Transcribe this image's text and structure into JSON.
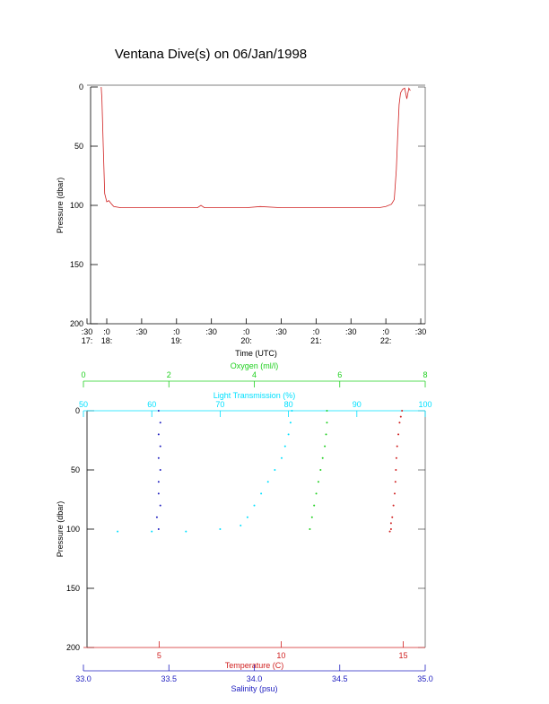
{
  "title": "Ventana Dive(s) on 06/Jan/1998",
  "chart_data": [
    {
      "type": "line",
      "xlabel": "Time (UTC)",
      "ylabel": "Pressure (dbar)",
      "color": "#d02020",
      "xlim": [
        17.717,
        22.564
      ],
      "ylim": [
        0,
        200
      ],
      "y_inverted": true,
      "yticks": [
        0,
        50,
        100,
        150,
        200
      ],
      "xticks": [
        {
          "value": 17.717,
          "label": [
            ":30",
            "17:"
          ]
        },
        {
          "value": 18,
          "label": [
            ":0",
            "18:"
          ]
        },
        {
          "value": 18.5,
          "label": [
            ":30"
          ]
        },
        {
          "value": 19,
          "label": [
            ":0",
            "19:"
          ]
        },
        {
          "value": 19.5,
          "label": [
            ":30"
          ]
        },
        {
          "value": 20,
          "label": [
            ":0",
            "20:"
          ]
        },
        {
          "value": 20.5,
          "label": [
            ":30"
          ]
        },
        {
          "value": 21,
          "label": [
            ":0",
            "21:"
          ]
        },
        {
          "value": 21.5,
          "label": [
            ":30"
          ]
        },
        {
          "value": 22,
          "label": [
            ":0",
            "22:"
          ]
        },
        {
          "value": 22.5,
          "label": [
            ":30"
          ]
        }
      ],
      "x": [
        17.92,
        17.93,
        17.95,
        17.97,
        18.0,
        18.03,
        18.07,
        18.1,
        18.2,
        18.5,
        19.0,
        19.3,
        19.35,
        19.4,
        20.0,
        20.2,
        20.5,
        21.0,
        21.5,
        21.9,
        22.0,
        22.08,
        22.12,
        22.15,
        22.17,
        22.19,
        22.21,
        22.24,
        22.27,
        22.3,
        22.33,
        22.35
      ],
      "values": [
        0,
        10,
        50,
        90,
        97,
        96,
        99,
        101,
        102,
        102,
        102,
        102,
        100,
        102,
        102,
        101,
        102,
        102,
        102,
        102,
        101,
        99,
        95,
        70,
        40,
        15,
        5,
        2,
        1,
        10,
        1,
        3
      ]
    },
    {
      "type": "scatter",
      "ylabel": "Pressure (dbar)",
      "ylim": [
        0,
        200
      ],
      "y_inverted": true,
      "yticks": [
        0,
        50,
        100,
        150,
        200
      ],
      "axes": [
        {
          "label": "Temperature (C)",
          "color": "#d02020",
          "position": "bottom",
          "xlim": [
            1.9,
            15.9
          ],
          "xticks": [
            5,
            10,
            15
          ]
        },
        {
          "label": "Salinity (psu)",
          "color": "#2020c0",
          "position": "bottom",
          "xlim": [
            33.0,
            35.0
          ],
          "xticks": [
            {
              "value": 33.0,
              "label": "33.0"
            },
            {
              "value": 33.5,
              "label": "33.5"
            },
            {
              "value": 34.0,
              "label": "34.0"
            },
            {
              "value": 34.5,
              "label": "34.5"
            },
            {
              "value": 35.0,
              "label": "35.0"
            }
          ]
        },
        {
          "label": "Light Transmission (%)",
          "color": "#00e0ff",
          "position": "top",
          "xlim": [
            50,
            100
          ],
          "xticks": [
            50,
            60,
            70,
            80,
            90,
            100
          ]
        },
        {
          "label": "Oxygen (ml/l)",
          "color": "#20d020",
          "position": "top",
          "xlim": [
            0,
            8
          ],
          "xticks": [
            0,
            2,
            4,
            6,
            8
          ]
        }
      ],
      "series": [
        {
          "axis": 0,
          "color": "#d02020",
          "x": [
            14.95,
            14.9,
            14.85,
            14.8,
            14.75,
            14.72,
            14.7,
            14.68,
            14.65,
            14.6,
            14.55,
            14.5,
            14.5,
            14.45
          ],
          "values": [
            0,
            5,
            10,
            20,
            30,
            40,
            50,
            60,
            70,
            80,
            90,
            95,
            100,
            102
          ]
        },
        {
          "axis": 1,
          "color": "#2020c0",
          "x": [
            33.44,
            33.45,
            33.44,
            33.45,
            33.44,
            33.45,
            33.44,
            33.44,
            33.45,
            33.43,
            33.44
          ],
          "values": [
            0,
            10,
            20,
            30,
            40,
            50,
            60,
            70,
            80,
            90,
            100
          ]
        },
        {
          "axis": 2,
          "color": "#00e0ff",
          "x": [
            80.5,
            80.3,
            80,
            79.5,
            79,
            78,
            77,
            76,
            75,
            74,
            73,
            70,
            65,
            60,
            55
          ],
          "values": [
            0,
            10,
            20,
            30,
            40,
            50,
            60,
            70,
            80,
            90,
            97,
            100,
            102,
            102,
            102
          ]
        },
        {
          "axis": 3,
          "color": "#20d020",
          "x": [
            5.7,
            5.7,
            5.68,
            5.65,
            5.6,
            5.55,
            5.5,
            5.45,
            5.4,
            5.35,
            5.3
          ],
          "values": [
            0,
            10,
            20,
            30,
            40,
            50,
            60,
            70,
            80,
            90,
            100
          ]
        }
      ]
    }
  ]
}
